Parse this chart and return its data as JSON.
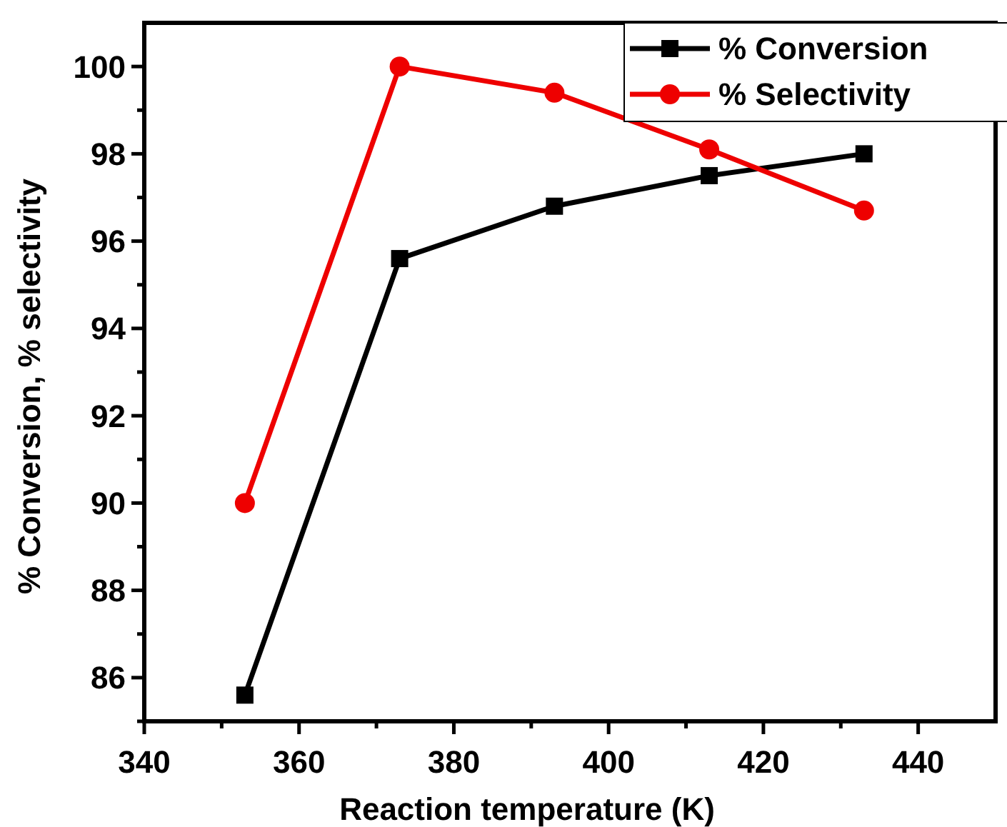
{
  "chart_data": {
    "type": "line",
    "xlabel": "Reaction temperature (K)",
    "ylabel": "% Conversion, % selectivity",
    "x": [
      353,
      373,
      393,
      413,
      433
    ],
    "series": [
      {
        "name": "% Conversion",
        "color": "#000000",
        "marker": "square",
        "values": [
          85.6,
          95.6,
          96.8,
          97.5,
          98.0
        ]
      },
      {
        "name": "% Selectivity",
        "color": "#ee0000",
        "marker": "circle",
        "values": [
          90.0,
          100.0,
          99.4,
          98.1,
          96.7
        ]
      }
    ],
    "xlim": [
      340,
      450
    ],
    "ylim": [
      85,
      101
    ],
    "xticks": [
      340,
      {
        "value": 350,
        "label": null
      },
      360,
      {
        "value": 370,
        "label": null
      },
      380,
      {
        "value": 390,
        "label": null
      },
      400,
      {
        "value": 410,
        "label": null
      },
      420,
      {
        "value": 430,
        "label": null
      },
      440
    ],
    "yticks": [
      {
        "value": 85,
        "label": null
      },
      86,
      {
        "value": 87,
        "label": null
      },
      88,
      {
        "value": 89,
        "label": null
      },
      90,
      {
        "value": 91,
        "label": null
      },
      92,
      {
        "value": 93,
        "label": null
      },
      94,
      {
        "value": 95,
        "label": null
      },
      96,
      {
        "value": 97,
        "label": null
      },
      98,
      {
        "value": 99,
        "label": null
      },
      100
    ],
    "grid": false,
    "legend": "top right",
    "line_style": "solid"
  }
}
